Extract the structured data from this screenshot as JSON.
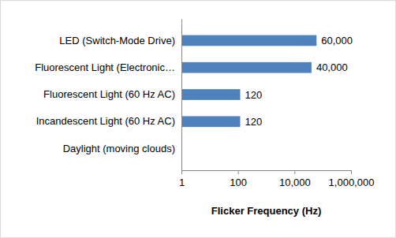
{
  "chart_data": {
    "type": "bar",
    "orientation": "horizontal",
    "categories": [
      "LED (Switch-Mode Drive)",
      "Fluorescent Light (Electronic…",
      "Fluorescent Light (60 Hz AC)",
      "Incandescent Light (60 Hz AC)",
      "Daylight (moving clouds)"
    ],
    "values": [
      60000,
      40000,
      120,
      120,
      null
    ],
    "value_labels": [
      "60,000",
      "40,000",
      "120",
      "120",
      null
    ],
    "color": "#4f81bd",
    "x_label": "Flicker Frequency (Hz)",
    "log": "x",
    "xlim": [
      1,
      1000000
    ],
    "xticks": [
      1,
      100,
      {
        "value": 10000,
        "label": "10,000"
      },
      {
        "value": 1000000,
        "label": "1,000,000"
      }
    ],
    "grid": false,
    "data_labels": true
  }
}
